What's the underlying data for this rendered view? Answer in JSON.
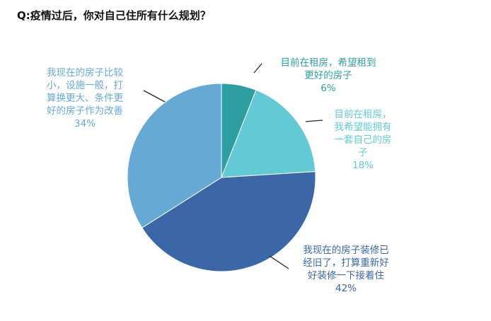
{
  "chart_data": {
    "type": "pie",
    "title": "Q:疫情过后，你对自己住所有什么规划？",
    "legend": "none",
    "slices": [
      {
        "label_lines": [
          "目前在租房，希望租到",
          "更好的房子"
        ],
        "value": 6,
        "percent_label": "6%",
        "color": "#2f9ea1"
      },
      {
        "label_lines": [
          "目前在租房，",
          "我希望能拥有",
          "一套自己的房",
          "子"
        ],
        "value": 18,
        "percent_label": "18%",
        "color": "#63cad5"
      },
      {
        "label_lines": [
          "我现在的房子装修已",
          "经旧了，打算重新好",
          "好装修一下接着住"
        ],
        "value": 42,
        "percent_label": "42%",
        "color": "#3c67a6"
      },
      {
        "label_lines": [
          "我现在的房子比较",
          "小，设施一般，打",
          "算换更大、条件更",
          "好的房子作为改善"
        ],
        "value": 34,
        "percent_label": "34%",
        "color": "#67a9d5"
      }
    ]
  }
}
